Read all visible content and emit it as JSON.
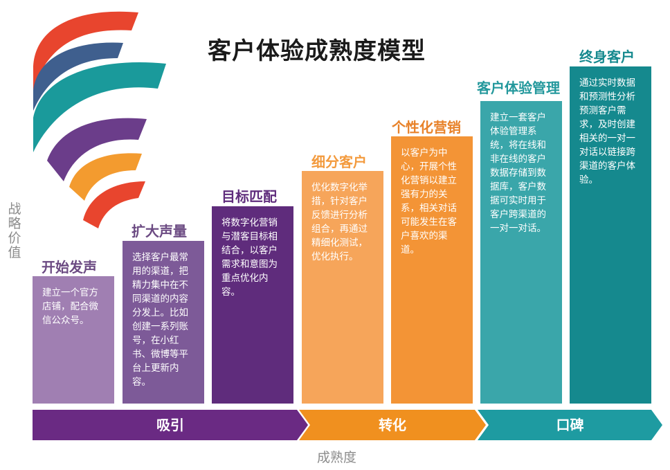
{
  "title": "客户体验成熟度模型",
  "y_axis_label": "战略价值",
  "x_axis_label": "成熟度",
  "stages": [
    {
      "label": "开始发声",
      "description": "建立一个官方店铺，配合微信公众号。",
      "color": "#a07fb2",
      "label_color": "#6b4a82"
    },
    {
      "label": "扩大声量",
      "description": "选择客户最常用的渠道，把精力集中在不同渠道的内容分发上。比如创建一系列账号，在小红书、微博等平台上更新内容。",
      "color": "#7d5a98",
      "label_color": "#6b4a82"
    },
    {
      "label": "目标匹配",
      "description": "将数字化营销与潜客目标相结合，以客户需求和意图为重点优化内容。",
      "color": "#5f2c7c",
      "label_color": "#5f2c7c"
    },
    {
      "label": "细分客户",
      "description": "优化数字化举措，针对客户反馈进行分析组合，再通过精细化测试，优化执行。",
      "color": "#f6a55a",
      "label_color": "#f39a3d"
    },
    {
      "label": "个性化营销",
      "description": "以客户为中心，开展个性化营销以建立强有力的关系，相关对话可能发生在客户喜欢的渠道。",
      "color": "#f39436",
      "label_color": "#e8822a"
    },
    {
      "label": "客户体验管理",
      "description": "建立一套客户体验管理系统，将在线和非在线的客户数据存储到数据库，客户数据可实时用于客户跨渠道的一对一对话。",
      "color": "#3aa6aa",
      "label_color": "#23989c"
    },
    {
      "label": "终身客户",
      "description": "通过实时数据和预测性分析预测客户需求，及时创建相关的一对一对话以链接跨渠道的客户体验。",
      "color": "#15898e",
      "label_color": "#15898e"
    }
  ],
  "phases": [
    {
      "label": "吸引",
      "color": "#6a2a83"
    },
    {
      "label": "转化",
      "color": "#f0901f"
    },
    {
      "label": "口碑",
      "color": "#1e9ba1"
    }
  ],
  "arc_colors": [
    "#e8452e",
    "#3f5f8e",
    "#1a9a9b",
    "#6b3d8a",
    "#f39b2f",
    "#e8452e"
  ]
}
